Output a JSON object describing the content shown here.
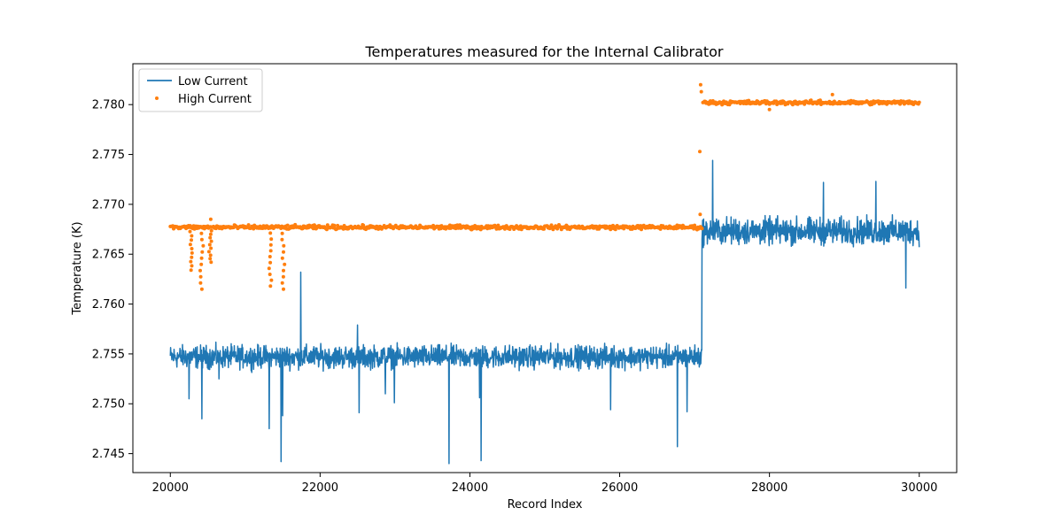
{
  "chart_data": {
    "type": "line",
    "title": "Temperatures measured for the Internal Calibrator",
    "xlabel": "Record Index",
    "ylabel": "Temperature (K)",
    "xlim": [
      19500,
      30500
    ],
    "ylim": [
      2.7431,
      2.7841
    ],
    "xticks": [
      20000,
      22000,
      24000,
      26000,
      28000,
      30000
    ],
    "xtick_labels": [
      "20000",
      "22000",
      "24000",
      "26000",
      "28000",
      "30000"
    ],
    "yticks": [
      2.745,
      2.75,
      2.755,
      2.76,
      2.765,
      2.77,
      2.775,
      2.78
    ],
    "ytick_labels": [
      "2.745",
      "2.750",
      "2.755",
      "2.760",
      "2.765",
      "2.770",
      "2.775",
      "2.780"
    ],
    "grid": false,
    "legend_position": "top-left",
    "series": [
      {
        "name": "Low Current",
        "kind": "line",
        "color": "#1f77b4",
        "x_range": [
          20000,
          30000
        ],
        "baseline": [
          {
            "from": 20000,
            "to": 27090,
            "level": 2.7547,
            "spread": 0.0011
          },
          {
            "from": 27100,
            "to": 30000,
            "level": 2.7673,
            "spread": 0.0013
          }
        ],
        "spikes": [
          [
            20250,
            2.7505
          ],
          [
            20420,
            2.7485
          ],
          [
            20650,
            2.7525
          ],
          [
            21320,
            2.7475
          ],
          [
            21480,
            2.7442
          ],
          [
            21500,
            2.7488
          ],
          [
            21740,
            2.7632
          ],
          [
            22500,
            2.7579
          ],
          [
            22520,
            2.7491
          ],
          [
            22870,
            2.751
          ],
          [
            22990,
            2.7501
          ],
          [
            23720,
            2.744
          ],
          [
            24130,
            2.7506
          ],
          [
            24150,
            2.7443
          ],
          [
            25880,
            2.7494
          ],
          [
            26770,
            2.7457
          ],
          [
            26900,
            2.7492
          ],
          [
            27100,
            2.7665
          ],
          [
            27240,
            2.7744
          ],
          [
            28720,
            2.7722
          ],
          [
            29420,
            2.7723
          ],
          [
            29820,
            2.7616
          ]
        ]
      },
      {
        "name": "High Current",
        "kind": "scatter",
        "color": "#ff7f0e",
        "x_range": [
          20000,
          30000
        ],
        "baseline": [
          {
            "from": 20000,
            "to": 27090,
            "level": 2.7677,
            "spread": 0.0002
          },
          {
            "from": 27100,
            "to": 30000,
            "level": 2.7802,
            "spread": 0.0002
          }
        ],
        "dips": [
          [
            20280,
            2.7634
          ],
          [
            20420,
            2.7615
          ],
          [
            20540,
            2.7642
          ],
          [
            21340,
            2.7618
          ],
          [
            21510,
            2.7615
          ]
        ],
        "outliers": [
          [
            20540,
            2.7685
          ],
          [
            27080,
            2.782
          ],
          [
            27090,
            2.7813
          ],
          [
            27070,
            2.7753
          ],
          [
            27075,
            2.769
          ],
          [
            28840,
            2.781
          ],
          [
            28000,
            2.7795
          ]
        ]
      }
    ]
  }
}
